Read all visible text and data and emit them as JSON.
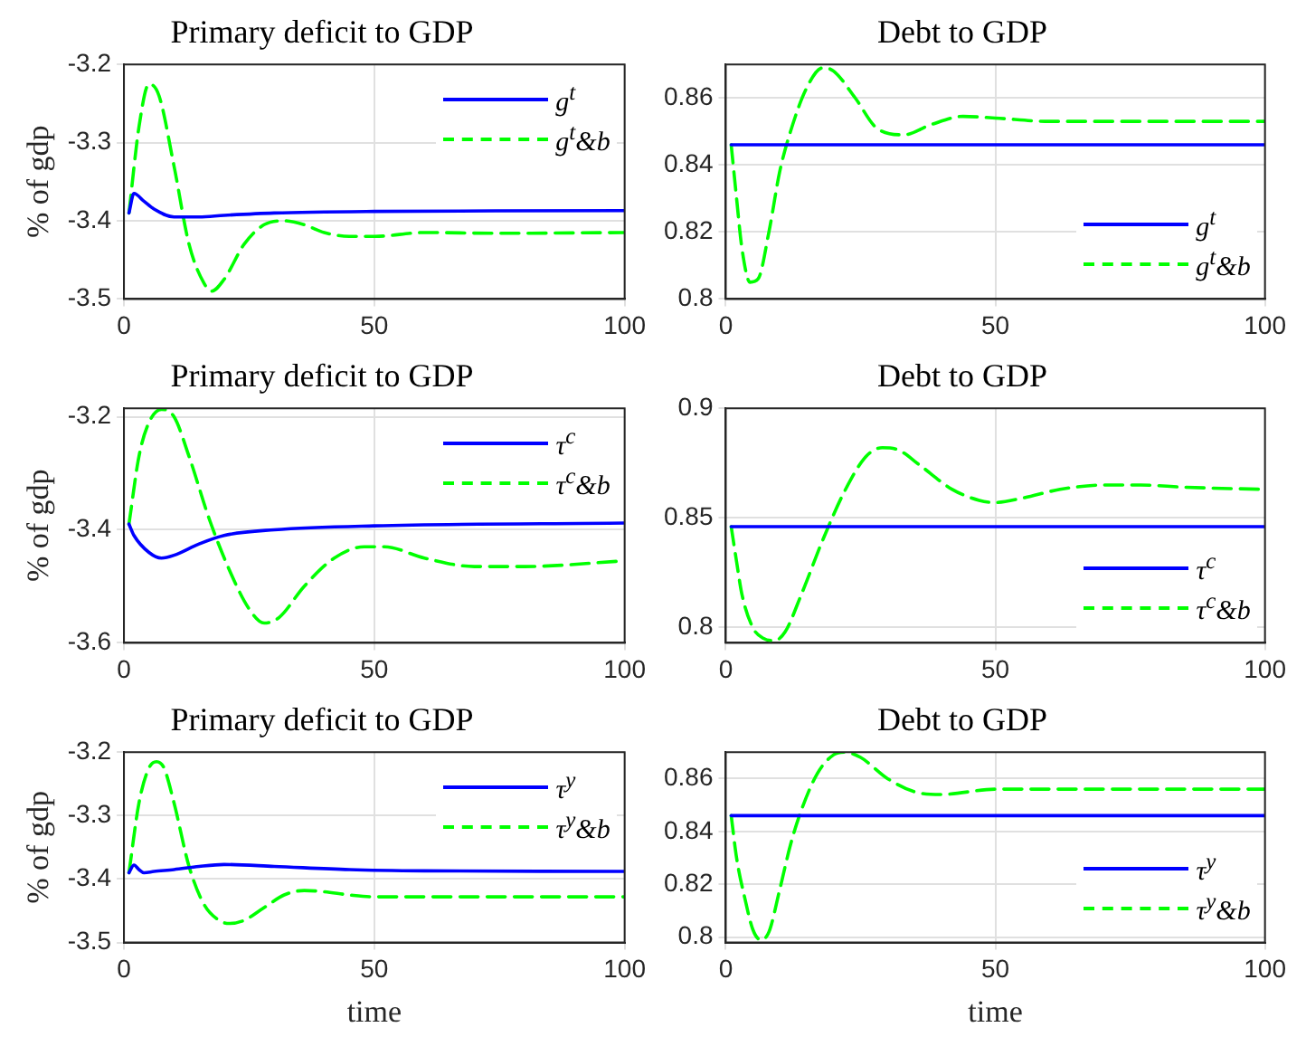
{
  "chart_data": [
    {
      "type": "line",
      "title": "Primary deficit to GDP",
      "ylabel": "% of gdp",
      "xlim": [
        0,
        100
      ],
      "xticks": [
        0,
        50,
        100
      ],
      "ylim": [
        -3.5,
        -3.2
      ],
      "yticks": [
        -3.5,
        -3.4,
        -3.3,
        -3.2
      ],
      "grid": true,
      "legend": "top right",
      "marker": "none",
      "series": [
        {
          "name": "g$^{t}$",
          "color": "#0000ff",
          "line_style": "solid",
          "x": [
            1,
            2,
            4,
            6,
            10,
            15,
            20,
            30,
            50,
            100
          ],
          "values": [
            -3.39,
            -3.365,
            -3.375,
            -3.385,
            -3.395,
            -3.395,
            -3.393,
            -3.39,
            -3.388,
            -3.387
          ]
        },
        {
          "name": "g$^{t}$&b",
          "color": "#00ff00",
          "line_style": "dashed",
          "x": [
            1,
            3,
            5,
            7,
            10,
            13,
            16,
            17.5,
            20,
            24,
            28,
            32,
            36,
            40,
            45,
            50,
            60,
            75,
            100
          ],
          "values": [
            -3.39,
            -3.28,
            -3.225,
            -3.24,
            -3.33,
            -3.43,
            -3.48,
            -3.49,
            -3.475,
            -3.43,
            -3.405,
            -3.4,
            -3.405,
            -3.415,
            -3.42,
            -3.42,
            -3.415,
            -3.416,
            -3.415
          ]
        }
      ]
    },
    {
      "type": "line",
      "title": "Debt to GDP",
      "xlim": [
        0,
        100
      ],
      "xticks": [
        0,
        50,
        100
      ],
      "ylim": [
        0.8,
        0.87
      ],
      "yticks": [
        0.8,
        0.82,
        0.84,
        0.86
      ],
      "grid": true,
      "legend": "bottom right",
      "marker": "none",
      "series": [
        {
          "name": "g$^{t}$",
          "color": "#0000ff",
          "line_style": "solid",
          "x": [
            1,
            100
          ],
          "values": [
            0.846,
            0.846
          ]
        },
        {
          "name": "g$^{t}$&b",
          "color": "#00ff00",
          "line_style": "dashed",
          "x": [
            1,
            2,
            3,
            4.5,
            6,
            8,
            10,
            12,
            15,
            18,
            20,
            24,
            28,
            33,
            38,
            44,
            50,
            60,
            80,
            100
          ],
          "values": [
            0.846,
            0.83,
            0.815,
            0.805,
            0.806,
            0.82,
            0.838,
            0.85,
            0.863,
            0.869,
            0.868,
            0.86,
            0.851,
            0.849,
            0.852,
            0.8545,
            0.854,
            0.853,
            0.853,
            0.853
          ]
        }
      ]
    },
    {
      "type": "line",
      "title": "Primary deficit to GDP",
      "ylabel": "% of gdp",
      "xlim": [
        0,
        100
      ],
      "xticks": [
        0,
        50,
        100
      ],
      "ylim": [
        -3.6,
        -3.185
      ],
      "yticks": [
        -3.6,
        -3.4,
        -3.2
      ],
      "grid": true,
      "legend": "top right",
      "marker": "none",
      "series": [
        {
          "name": "τ$^{c}$",
          "color": "#0000ff",
          "line_style": "solid",
          "x": [
            1,
            2,
            5,
            7.5,
            10,
            15,
            20,
            30,
            50,
            100
          ],
          "values": [
            -3.39,
            -3.41,
            -3.44,
            -3.45,
            -3.445,
            -3.425,
            -3.41,
            -3.4,
            -3.393,
            -3.388
          ]
        },
        {
          "name": "τ$^{c}$&b",
          "color": "#00ff00",
          "line_style": "dashed",
          "x": [
            1,
            3,
            5,
            7.5,
            10,
            13,
            17,
            21,
            25,
            28,
            31,
            36,
            42,
            48,
            52,
            60,
            70,
            80,
            100
          ],
          "values": [
            -3.39,
            -3.27,
            -3.21,
            -3.187,
            -3.2,
            -3.27,
            -3.38,
            -3.47,
            -3.54,
            -3.565,
            -3.555,
            -3.5,
            -3.45,
            -3.43,
            -3.43,
            -3.45,
            -3.465,
            -3.465,
            -3.455
          ]
        }
      ]
    },
    {
      "type": "line",
      "title": "Debt to GDP",
      "xlim": [
        0,
        100
      ],
      "xticks": [
        0,
        50,
        100
      ],
      "ylim": [
        0.793,
        0.9
      ],
      "yticks": [
        0.8,
        0.85,
        0.9
      ],
      "grid": true,
      "legend": "bottom right",
      "marker": "none",
      "series": [
        {
          "name": "τ$^{c}$",
          "color": "#0000ff",
          "line_style": "solid",
          "x": [
            1,
            100
          ],
          "values": [
            0.846,
            0.846
          ]
        },
        {
          "name": "τ$^{c}$&b",
          "color": "#00ff00",
          "line_style": "dashed",
          "x": [
            1,
            2,
            3,
            5,
            7,
            9,
            11,
            14,
            18,
            22,
            26,
            29,
            32,
            36,
            42,
            47,
            50,
            55,
            62,
            70,
            77,
            85,
            100
          ],
          "values": [
            0.846,
            0.83,
            0.815,
            0.8,
            0.795,
            0.794,
            0.798,
            0.815,
            0.84,
            0.862,
            0.878,
            0.882,
            0.881,
            0.874,
            0.863,
            0.858,
            0.857,
            0.859,
            0.863,
            0.865,
            0.865,
            0.864,
            0.863
          ]
        }
      ]
    },
    {
      "type": "line",
      "title": "Primary deficit to GDP",
      "xlabel": "time",
      "ylabel": "% of gdp",
      "xlim": [
        0,
        100
      ],
      "xticks": [
        0,
        50,
        100
      ],
      "ylim": [
        -3.5,
        -3.2
      ],
      "yticks": [
        -3.5,
        -3.4,
        -3.3,
        -3.2
      ],
      "grid": true,
      "legend": "top right",
      "marker": "none",
      "series": [
        {
          "name": "τ$^{y}$",
          "color": "#0000ff",
          "line_style": "solid",
          "x": [
            1,
            2,
            3,
            4,
            6,
            10,
            15,
            20,
            30,
            45,
            60,
            100
          ],
          "values": [
            -3.39,
            -3.378,
            -3.385,
            -3.39,
            -3.388,
            -3.385,
            -3.38,
            -3.377,
            -3.38,
            -3.385,
            -3.387,
            -3.388
          ]
        },
        {
          "name": "τ$^{y}$&b",
          "color": "#00ff00",
          "line_style": "dashed",
          "x": [
            1,
            3,
            5,
            6.5,
            8,
            10,
            13,
            16,
            19,
            21,
            24,
            28,
            32,
            36,
            40,
            45,
            50,
            60,
            100
          ],
          "values": [
            -3.39,
            -3.28,
            -3.225,
            -3.215,
            -3.225,
            -3.28,
            -3.38,
            -3.44,
            -3.465,
            -3.47,
            -3.465,
            -3.445,
            -3.425,
            -3.418,
            -3.42,
            -3.425,
            -3.428,
            -3.428,
            -3.428
          ]
        }
      ]
    },
    {
      "type": "line",
      "title": "Debt to GDP",
      "xlabel": "time",
      "xlim": [
        0,
        100
      ],
      "xticks": [
        0,
        50,
        100
      ],
      "ylim": [
        0.798,
        0.87
      ],
      "yticks": [
        0.8,
        0.82,
        0.84,
        0.86
      ],
      "grid": true,
      "legend": "bottom right",
      "marker": "none",
      "series": [
        {
          "name": "τ$^{y}$",
          "color": "#0000ff",
          "line_style": "solid",
          "x": [
            1,
            100
          ],
          "values": [
            0.846,
            0.846
          ]
        },
        {
          "name": "τ$^{y}$&b",
          "color": "#00ff00",
          "line_style": "dashed",
          "x": [
            1,
            2,
            3.5,
            5,
            6.5,
            8,
            10,
            12,
            14,
            17,
            20,
            22,
            25,
            30,
            35,
            40,
            50,
            60,
            100
          ],
          "values": [
            0.846,
            0.83,
            0.815,
            0.803,
            0.799,
            0.802,
            0.818,
            0.835,
            0.848,
            0.862,
            0.869,
            0.87,
            0.868,
            0.86,
            0.855,
            0.854,
            0.856,
            0.856,
            0.856
          ]
        }
      ]
    }
  ]
}
